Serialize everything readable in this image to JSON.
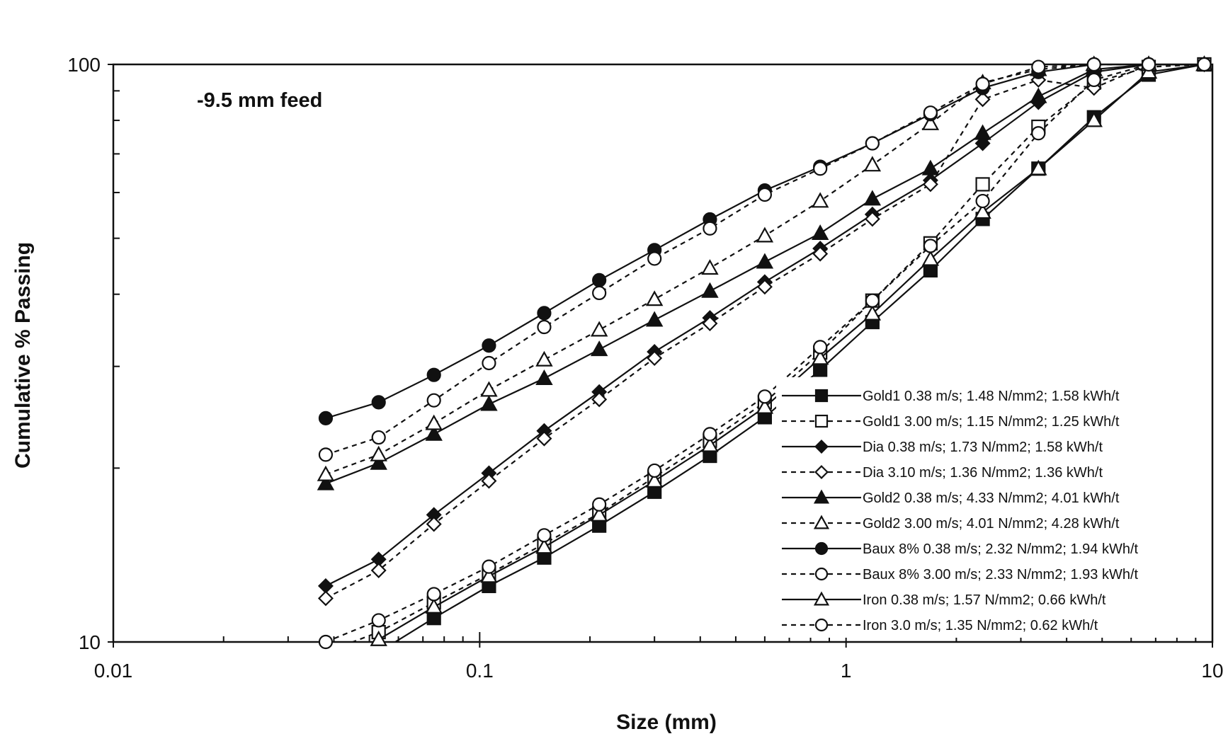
{
  "chart_data": {
    "type": "line",
    "annotation": "-9.5 mm feed",
    "xlabel": "Size (mm)",
    "ylabel": "Cumulative % Passing",
    "xscale": "log",
    "yscale": "log",
    "xlim": [
      0.01,
      10
    ],
    "ylim": [
      10,
      100
    ],
    "x_tick_labels": [
      "0.01",
      "0.1",
      "1",
      "10"
    ],
    "y_tick_labels": [
      "10",
      "100"
    ],
    "grid": false,
    "legend_position": "bottom-right",
    "series": [
      {
        "name": "Gold1 0.38 m/s; 1.48 N/mm2; 1.58 kWh/t",
        "marker": "square",
        "filled": true,
        "dashed": false,
        "x": [
          0.038,
          0.053,
          0.075,
          0.106,
          0.15,
          0.212,
          0.3,
          0.425,
          0.6,
          0.85,
          1.18,
          1.7,
          2.36,
          3.35,
          4.75,
          6.7,
          9.5
        ],
        "y": [
          8.6,
          9.6,
          11.0,
          12.5,
          14.0,
          15.9,
          18.2,
          21.0,
          24.5,
          29.6,
          35.8,
          44.0,
          54.0,
          66.0,
          81.0,
          96.0,
          100
        ]
      },
      {
        "name": "Gold1 3.00 m/s; 1.15 N/mm2; 1.25 kWh/t",
        "marker": "square",
        "filled": false,
        "dashed": true,
        "x": [
          0.038,
          0.053,
          0.075,
          0.106,
          0.15,
          0.212,
          0.3,
          0.425,
          0.6,
          0.85,
          1.18,
          1.7,
          2.36,
          3.35,
          4.75,
          6.7,
          9.5
        ],
        "y": [
          9.6,
          10.4,
          11.7,
          13.1,
          14.8,
          16.7,
          19.3,
          22.3,
          26.0,
          31.7,
          39.0,
          49.0,
          62.0,
          78.0,
          93.0,
          99.0,
          100
        ]
      },
      {
        "name": "Dia 0.38 m/s; 1.73 N/mm2; 1.58 kWh/t",
        "marker": "diamond",
        "filled": true,
        "dashed": false,
        "x": [
          0.038,
          0.053,
          0.075,
          0.106,
          0.15,
          0.212,
          0.3,
          0.425,
          0.6,
          0.85,
          1.18,
          1.7,
          2.36,
          3.35,
          4.75,
          6.7,
          9.5
        ],
        "y": [
          12.5,
          13.9,
          16.6,
          19.6,
          23.2,
          27.1,
          31.8,
          36.4,
          42.0,
          48.0,
          55.0,
          63.0,
          73.0,
          86.0,
          97.0,
          100,
          100
        ]
      },
      {
        "name": "Dia 3.10 m/s; 1.36 N/mm2; 1.36 kWh/t",
        "marker": "diamond",
        "filled": false,
        "dashed": true,
        "x": [
          0.038,
          0.053,
          0.075,
          0.106,
          0.15,
          0.212,
          0.3,
          0.425,
          0.6,
          0.85,
          1.18,
          1.7,
          2.36,
          3.35,
          4.75,
          6.7,
          9.5
        ],
        "y": [
          11.9,
          13.3,
          16.0,
          19.0,
          22.5,
          26.3,
          31.0,
          35.6,
          41.2,
          47.0,
          54.0,
          62.0,
          87.0,
          94.0,
          91.0,
          100,
          100
        ]
      },
      {
        "name": "Gold2 0.38 m/s; 4.33 N/mm2; 4.01 kWh/t",
        "marker": "triangle",
        "filled": true,
        "dashed": false,
        "x": [
          0.038,
          0.053,
          0.075,
          0.106,
          0.15,
          0.212,
          0.3,
          0.425,
          0.6,
          0.85,
          1.18,
          1.7,
          2.36,
          3.35,
          4.75,
          6.7,
          9.5
        ],
        "y": [
          18.8,
          20.4,
          22.9,
          25.8,
          28.6,
          32.1,
          36.1,
          40.5,
          45.5,
          51.0,
          58.5,
          66.0,
          76.0,
          88.0,
          98.0,
          100,
          100
        ]
      },
      {
        "name": "Gold2 3.00 m/s; 4.01 N/mm2; 4.28 kWh/t",
        "marker": "triangle",
        "filled": false,
        "dashed": true,
        "x": [
          0.038,
          0.053,
          0.075,
          0.106,
          0.15,
          0.212,
          0.3,
          0.425,
          0.6,
          0.85,
          1.18,
          1.7,
          2.36,
          3.35,
          4.75,
          6.7,
          9.5
        ],
        "y": [
          19.5,
          21.1,
          23.9,
          27.3,
          30.8,
          34.7,
          39.2,
          44.4,
          50.5,
          58.0,
          67.0,
          79.0,
          93.0,
          98.0,
          100,
          100,
          100
        ]
      },
      {
        "name": "Baux 8% 0.38 m/s; 2.32 N/mm2; 1.94 kWh/t",
        "marker": "circle",
        "filled": true,
        "dashed": false,
        "x": [
          0.038,
          0.053,
          0.075,
          0.106,
          0.15,
          0.212,
          0.3,
          0.425,
          0.6,
          0.85,
          1.18,
          1.7,
          2.36,
          3.35,
          4.75,
          6.7,
          9.5
        ],
        "y": [
          24.4,
          26.0,
          29.0,
          32.6,
          37.1,
          42.3,
          47.7,
          53.9,
          60.5,
          66.5,
          73.0,
          82.0,
          91.0,
          97.0,
          100,
          100,
          100
        ]
      },
      {
        "name": "Baux 8% 3.00 m/s; 2.33 N/mm2; 1.93 kWh/t",
        "marker": "circle",
        "filled": false,
        "dashed": true,
        "x": [
          0.038,
          0.053,
          0.075,
          0.106,
          0.15,
          0.212,
          0.3,
          0.425,
          0.6,
          0.85,
          1.18,
          1.7,
          2.36,
          3.35,
          4.75,
          6.7,
          9.5
        ],
        "y": [
          21.1,
          22.6,
          26.2,
          30.4,
          35.1,
          40.2,
          46.1,
          52.0,
          59.5,
          66.0,
          73.0,
          82.5,
          92.5,
          99.0,
          100,
          100,
          100
        ]
      },
      {
        "name": "Iron 0.38 m/s; 1.57 N/mm2; 0.66 kWh/t",
        "marker": "triangle",
        "filled": false,
        "dashed": false,
        "x": [
          0.038,
          0.053,
          0.075,
          0.106,
          0.15,
          0.212,
          0.3,
          0.425,
          0.6,
          0.85,
          1.18,
          1.7,
          2.36,
          3.35,
          4.75,
          6.7,
          9.5
        ],
        "y": [
          8.9,
          10.1,
          11.5,
          13.0,
          14.6,
          16.6,
          19.0,
          21.9,
          25.5,
          31.0,
          37.0,
          46.0,
          55.5,
          66.0,
          80.0,
          97.0,
          100
        ]
      },
      {
        "name": "Iron 3.0 m/s; 1.35 N/mm2; 0.62 kWh/t",
        "marker": "circle",
        "filled": false,
        "dashed": true,
        "x": [
          0.038,
          0.053,
          0.075,
          0.106,
          0.15,
          0.212,
          0.3,
          0.425,
          0.6,
          0.85,
          1.18,
          1.7,
          2.36,
          3.35,
          4.75,
          6.7,
          9.5
        ],
        "y": [
          10.0,
          10.9,
          12.1,
          13.5,
          15.3,
          17.3,
          19.8,
          22.9,
          26.6,
          32.4,
          39.0,
          48.5,
          58.0,
          76.0,
          94.0,
          100,
          100
        ]
      }
    ]
  }
}
